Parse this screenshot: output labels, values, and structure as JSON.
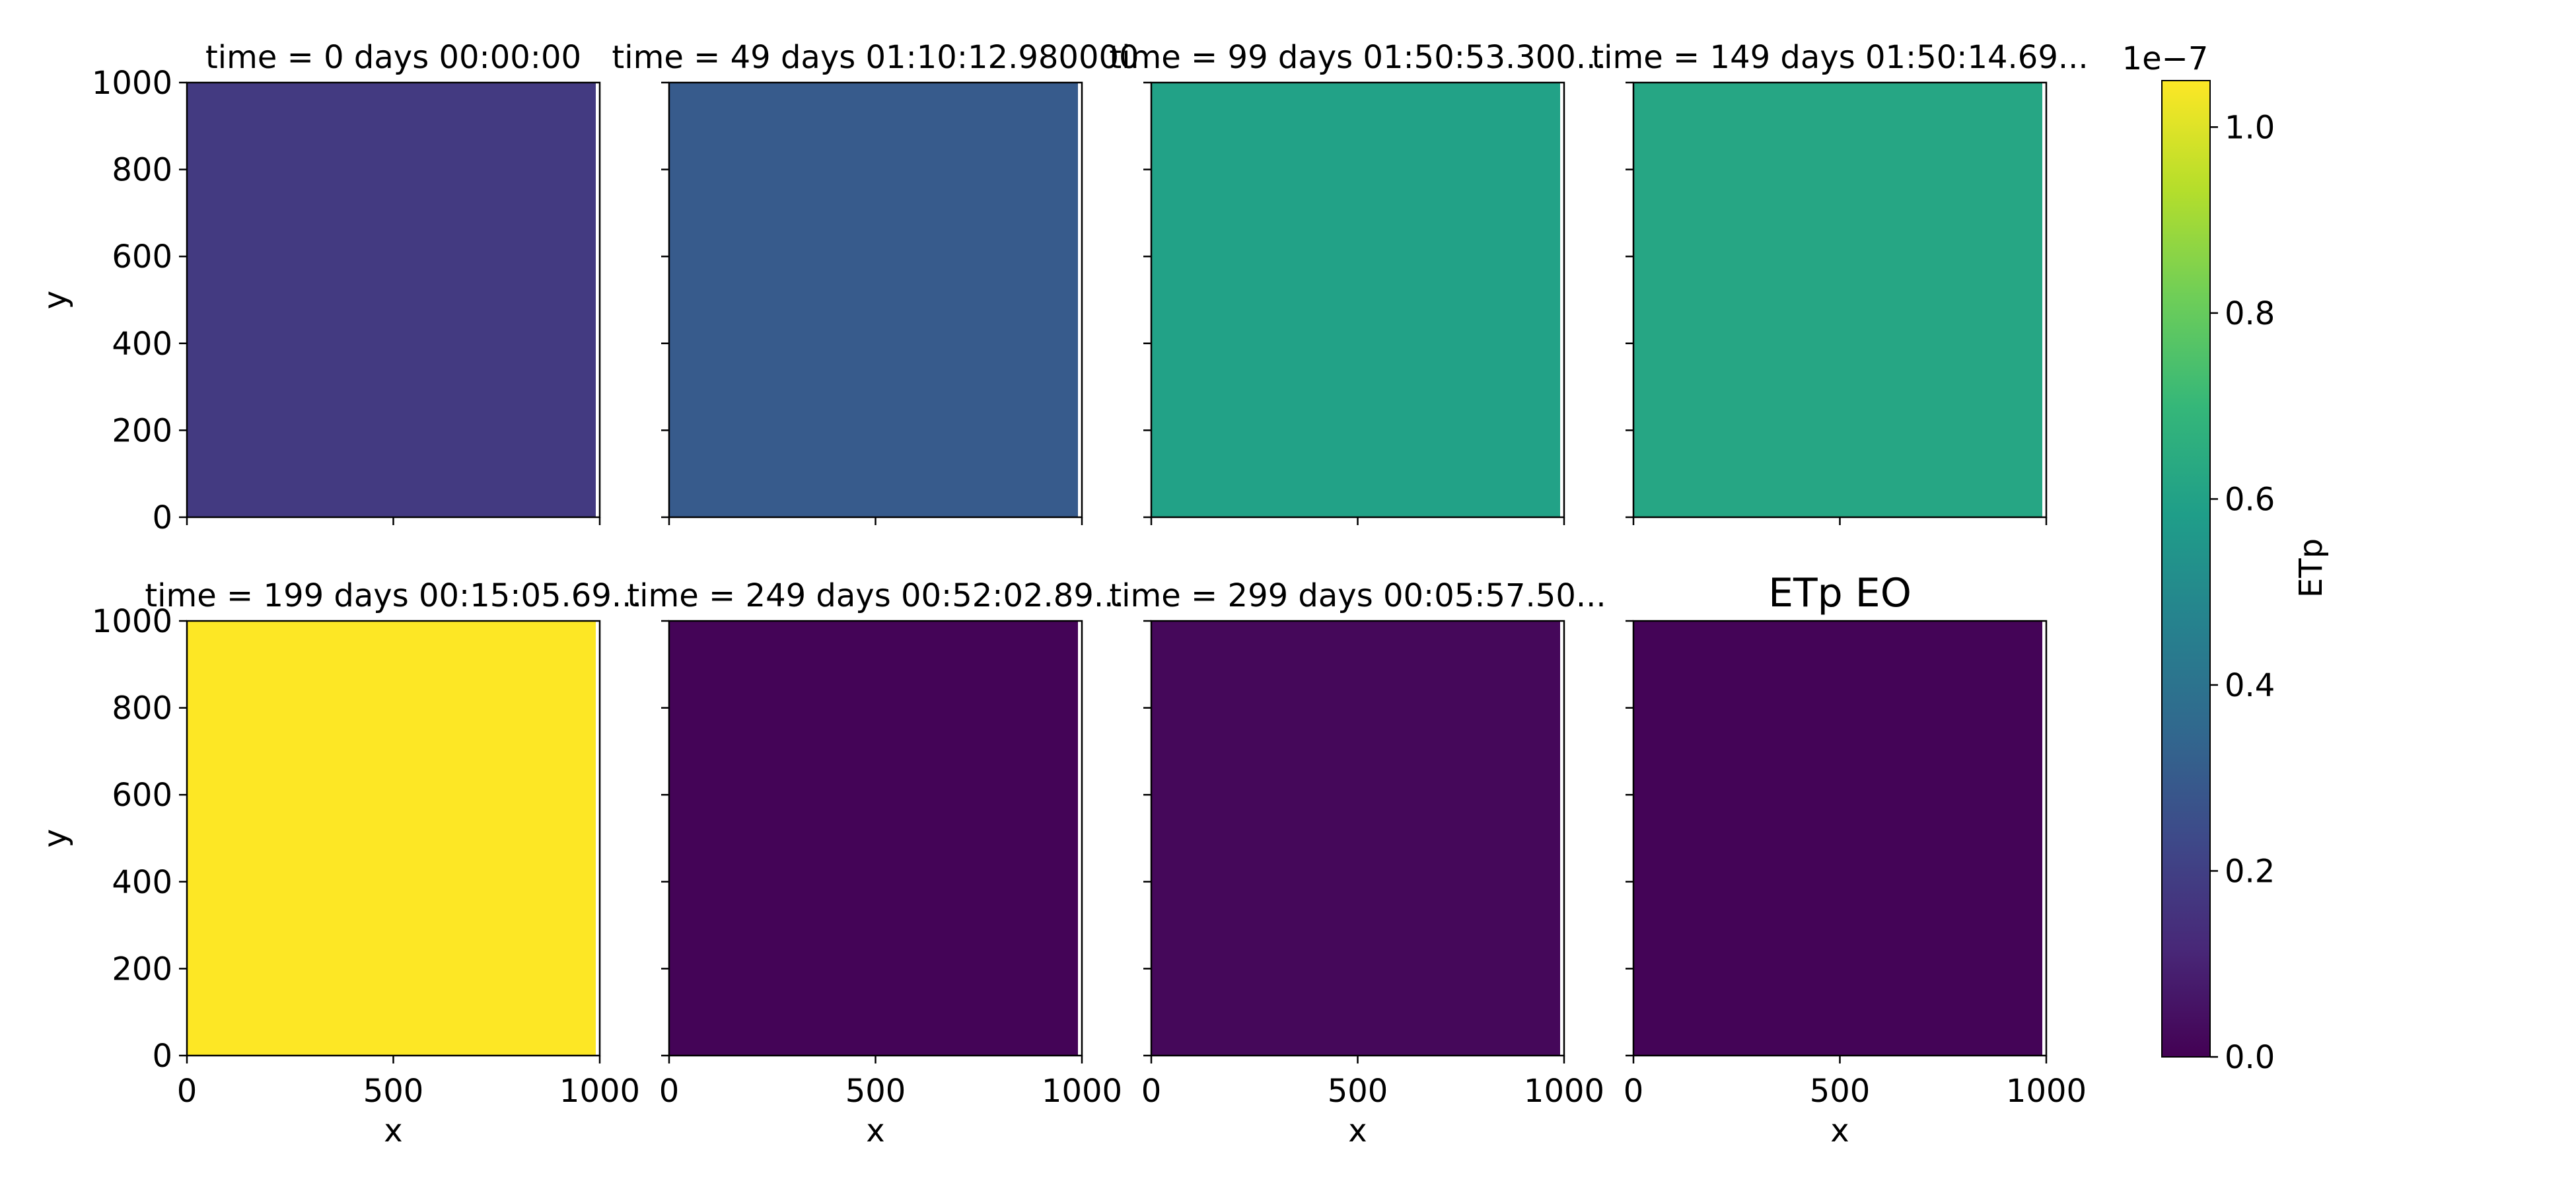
{
  "chart_data": {
    "type": "heatmap",
    "colormap": "viridis",
    "colormap_stops": [
      "#440154",
      "#482878",
      "#3e4989",
      "#31688e",
      "#26828e",
      "#1f9e89",
      "#35b779",
      "#6ece58",
      "#b5de2b",
      "#fde725"
    ],
    "x_range": [
      0,
      1000
    ],
    "y_range": [
      0,
      1000
    ],
    "xlabel": "x",
    "ylabel": "y",
    "x_ticks": [
      "0",
      "500",
      "1000"
    ],
    "y_ticks": [
      "0",
      "200",
      "400",
      "600",
      "800",
      "1000"
    ],
    "panels": [
      {
        "title": "time = 0 days 00:00:00",
        "value": 0.18
      },
      {
        "title": "time = 49 days 01:10:12.980000",
        "value": 0.3
      },
      {
        "title": "time = 99 days 01:50:53.300...",
        "value": 0.6
      },
      {
        "title": "time = 149 days 01:50:14.69...",
        "value": 0.62
      },
      {
        "title": "time = 199 days 00:15:05.69...",
        "value": 1.05
      },
      {
        "title": "time = 249 days 00:52:02.89...",
        "value": 0.01
      },
      {
        "title": "time = 299 days 00:05:57.50...",
        "value": 0.02
      },
      {
        "title": "ETp EO",
        "value": 0.01
      }
    ],
    "colorbar": {
      "label": "ETp",
      "offset_text": "1e−7",
      "vmin": 0.0,
      "vmax": 1.05,
      "ticks": [
        0.0,
        0.2,
        0.4,
        0.6,
        0.8,
        1.0
      ],
      "tick_labels": [
        "0.0",
        "0.2",
        "0.4",
        "0.6",
        "0.8",
        "1.0"
      ]
    }
  }
}
